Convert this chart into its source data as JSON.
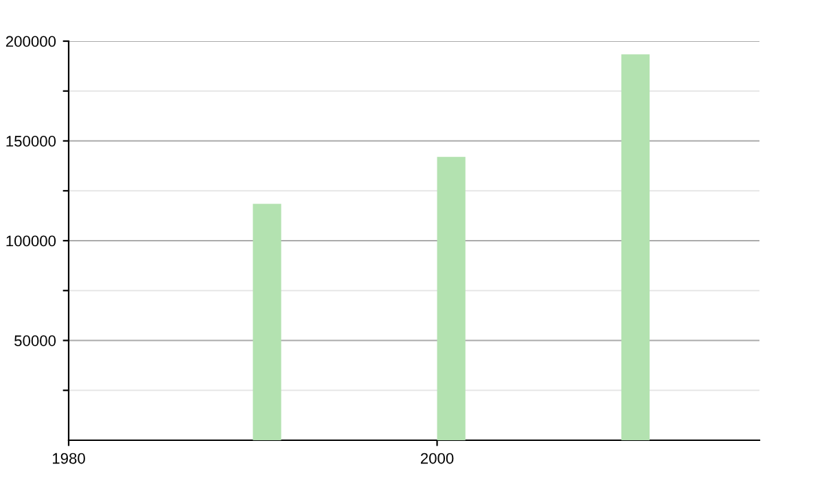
{
  "chart_data": {
    "type": "bar",
    "x": [
      1990,
      2000,
      2010
    ],
    "series": [
      {
        "color": "#b3e2b0",
        "values": [
          118500,
          142000,
          193400
        ]
      }
    ],
    "xlim": [
      1980,
      2017.5
    ],
    "xticks": [
      1980,
      2000
    ],
    "ylim": [
      0,
      200000
    ],
    "yticks": [
      {
        "value": 25000,
        "label": null
      },
      50000,
      {
        "value": 75000,
        "label": null
      },
      100000,
      {
        "value": 125000,
        "label": null
      },
      150000,
      {
        "value": 175000,
        "label": null
      },
      200000
    ],
    "grid": "y",
    "legend": false
  }
}
